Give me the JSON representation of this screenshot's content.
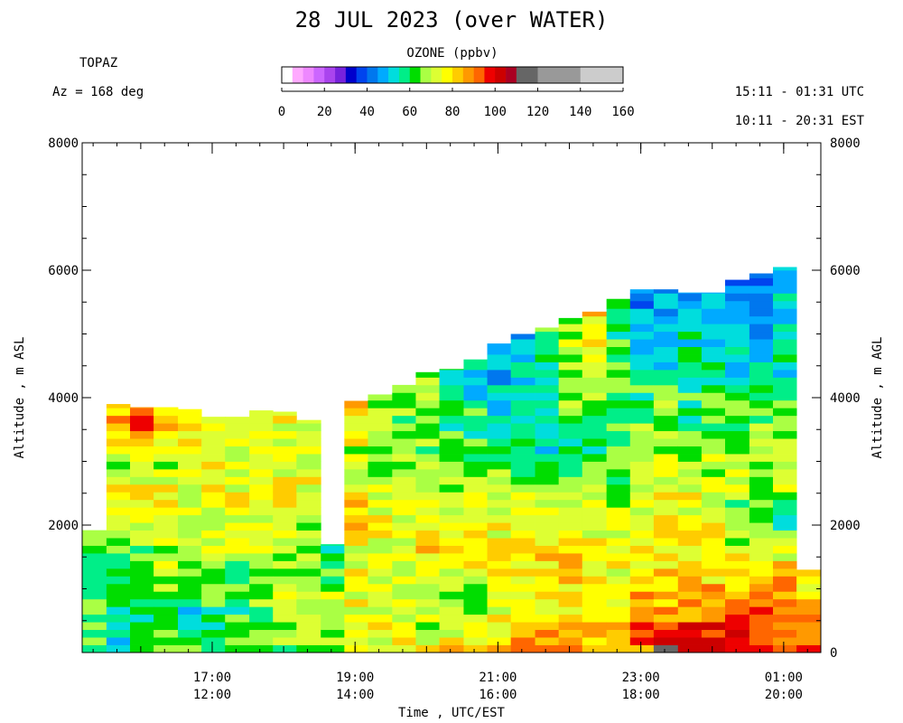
{
  "header": {
    "title": "28 JUL 2023 (over WATER)",
    "site": "TOPAZ",
    "azimuth": "Az = 168 deg",
    "utc_range": "15:11 - 01:31 UTC",
    "est_range": "10:11 - 20:31 EST"
  },
  "colorbar": {
    "title": "OZONE (ppbv)",
    "tick_labels": [
      "0",
      "20",
      "40",
      "60",
      "80",
      "100",
      "120",
      "140",
      "160"
    ],
    "tick_values": [
      0,
      20,
      40,
      60,
      80,
      100,
      120,
      140,
      160
    ],
    "bins": [
      {
        "from": 0,
        "to": 5,
        "color": "#ffffff"
      },
      {
        "from": 5,
        "to": 10,
        "color": "#ffaaff"
      },
      {
        "from": 10,
        "to": 15,
        "color": "#ee88ff"
      },
      {
        "from": 15,
        "to": 20,
        "color": "#cc66ff"
      },
      {
        "from": 20,
        "to": 25,
        "color": "#aa44ee"
      },
      {
        "from": 25,
        "to": 30,
        "color": "#7722dd"
      },
      {
        "from": 30,
        "to": 35,
        "color": "#0000cc"
      },
      {
        "from": 35,
        "to": 40,
        "color": "#0044ee"
      },
      {
        "from": 40,
        "to": 45,
        "color": "#0077ee"
      },
      {
        "from": 45,
        "to": 50,
        "color": "#00aaff"
      },
      {
        "from": 50,
        "to": 55,
        "color": "#00dddd"
      },
      {
        "from": 55,
        "to": 60,
        "color": "#00ee88"
      },
      {
        "from": 60,
        "to": 65,
        "color": "#00dd00"
      },
      {
        "from": 65,
        "to": 70,
        "color": "#aaff44"
      },
      {
        "from": 70,
        "to": 75,
        "color": "#ddff33"
      },
      {
        "from": 75,
        "to": 80,
        "color": "#ffff00"
      },
      {
        "from": 80,
        "to": 85,
        "color": "#ffcc00"
      },
      {
        "from": 85,
        "to": 90,
        "color": "#ff9900"
      },
      {
        "from": 90,
        "to": 95,
        "color": "#ff6600"
      },
      {
        "from": 95,
        "to": 100,
        "color": "#ee0000"
      },
      {
        "from": 100,
        "to": 105,
        "color": "#cc0000"
      },
      {
        "from": 105,
        "to": 110,
        "color": "#aa0022"
      },
      {
        "from": 110,
        "to": 120,
        "color": "#666666"
      },
      {
        "from": 120,
        "to": 140,
        "color": "#999999"
      },
      {
        "from": 140,
        "to": 160,
        "color": "#cccccc"
      }
    ]
  },
  "chart_data": {
    "type": "heatmap",
    "title": "28 JUL 2023 (over WATER)",
    "xlabel": "Time , UTC/EST",
    "ylabel_left": "Altitude , m ASL",
    "ylabel_right": "Altitude , m AGL",
    "x_unit": "hours UTC since 00:00 28 JUL 2023",
    "xlim": [
      15.18,
      25.52
    ],
    "ylim": [
      0,
      8000
    ],
    "x_ticks": [
      {
        "value": 17,
        "utc": "17:00",
        "est": "12:00"
      },
      {
        "value": 19,
        "utc": "19:00",
        "est": "14:00"
      },
      {
        "value": 21,
        "utc": "21:00",
        "est": "16:00"
      },
      {
        "value": 23,
        "utc": "23:00",
        "est": "18:00"
      },
      {
        "value": 25,
        "utc": "01:00",
        "est": "20:00"
      }
    ],
    "y_ticks_left": [
      {
        "value": 2000,
        "label": "2000"
      },
      {
        "value": 4000,
        "label": "4000"
      },
      {
        "value": 6000,
        "label": "6000"
      },
      {
        "value": 8000,
        "label": "8000"
      }
    ],
    "y_ticks_right": [
      {
        "value": 0,
        "label": "0"
      },
      {
        "value": 2000,
        "label": "2000"
      },
      {
        "value": 4000,
        "label": "4000"
      },
      {
        "value": 6000,
        "label": "6000"
      },
      {
        "value": 8000,
        "label": "8000"
      }
    ],
    "layer_height_m": 120,
    "profiles": [
      {
        "t_start": 15.18,
        "t_end": 15.52,
        "top_m": 1920,
        "profile": [
          [
            0,
            65
          ],
          [
            800,
            64
          ],
          [
            1200,
            63
          ],
          [
            1920,
            65
          ]
        ]
      },
      {
        "t_start": 15.52,
        "t_end": 15.85,
        "top_m": 3900,
        "profile": [
          [
            0,
            55
          ],
          [
            800,
            58
          ],
          [
            1600,
            62
          ],
          [
            2400,
            80
          ],
          [
            3000,
            70
          ],
          [
            3600,
            90
          ],
          [
            3900,
            85
          ]
        ]
      },
      {
        "t_start": 15.85,
        "t_end": 16.18,
        "top_m": 3850,
        "profile": [
          [
            0,
            58
          ],
          [
            800,
            60
          ],
          [
            1600,
            65
          ],
          [
            2400,
            76
          ],
          [
            3000,
            72
          ],
          [
            3600,
            98
          ],
          [
            3850,
            90
          ]
        ]
      },
      {
        "t_start": 16.18,
        "t_end": 16.52,
        "top_m": 3850,
        "profile": [
          [
            0,
            62
          ],
          [
            800,
            63
          ],
          [
            1600,
            70
          ],
          [
            2400,
            80
          ],
          [
            3000,
            70
          ],
          [
            3600,
            85
          ],
          [
            3850,
            80
          ]
        ]
      },
      {
        "t_start": 16.52,
        "t_end": 16.85,
        "top_m": 3820,
        "profile": [
          [
            0,
            60
          ],
          [
            800,
            55
          ],
          [
            1600,
            68
          ],
          [
            2400,
            74
          ],
          [
            3000,
            74
          ],
          [
            3600,
            80
          ],
          [
            3820,
            75
          ]
        ]
      },
      {
        "t_start": 16.85,
        "t_end": 17.18,
        "top_m": 3700,
        "profile": [
          [
            0,
            58
          ],
          [
            800,
            60
          ],
          [
            1600,
            70
          ],
          [
            2400,
            75
          ],
          [
            3000,
            74
          ],
          [
            3700,
            72
          ]
        ]
      },
      {
        "t_start": 17.18,
        "t_end": 17.52,
        "top_m": 3700,
        "profile": [
          [
            0,
            60
          ],
          [
            800,
            60
          ],
          [
            1600,
            70
          ],
          [
            2400,
            76
          ],
          [
            3000,
            74
          ],
          [
            3700,
            72
          ]
        ]
      },
      {
        "t_start": 17.52,
        "t_end": 17.85,
        "top_m": 3800,
        "profile": [
          [
            0,
            62
          ],
          [
            800,
            65
          ],
          [
            1600,
            70
          ],
          [
            2400,
            78
          ],
          [
            3000,
            72
          ],
          [
            3800,
            80
          ]
        ]
      },
      {
        "t_start": 17.85,
        "t_end": 18.18,
        "top_m": 3780,
        "profile": [
          [
            0,
            64
          ],
          [
            800,
            68
          ],
          [
            1600,
            70
          ],
          [
            2400,
            76
          ],
          [
            3000,
            72
          ],
          [
            3780,
            74
          ]
        ]
      },
      {
        "t_start": 18.18,
        "t_end": 18.52,
        "top_m": 3650,
        "profile": [
          [
            0,
            66
          ],
          [
            800,
            70
          ],
          [
            1600,
            68
          ],
          [
            2400,
            74
          ],
          [
            3000,
            72
          ],
          [
            3650,
            74
          ]
        ]
      },
      {
        "t_start": 18.52,
        "t_end": 18.85,
        "top_m": 1700,
        "profile": [
          [
            0,
            68
          ],
          [
            800,
            72
          ],
          [
            1700,
            60
          ]
        ]
      },
      {
        "t_start": 18.85,
        "t_end": 19.18,
        "top_m": 3950,
        "profile": [
          [
            0,
            72
          ],
          [
            800,
            74
          ],
          [
            1600,
            76
          ],
          [
            2200,
            84
          ],
          [
            3000,
            70
          ],
          [
            3950,
            80
          ]
        ]
      },
      {
        "t_start": 19.18,
        "t_end": 19.52,
        "top_m": 4050,
        "profile": [
          [
            0,
            74
          ],
          [
            800,
            72
          ],
          [
            1600,
            74
          ],
          [
            2400,
            72
          ],
          [
            3200,
            66
          ],
          [
            4050,
            70
          ]
        ]
      },
      {
        "t_start": 19.52,
        "t_end": 19.85,
        "top_m": 4200,
        "profile": [
          [
            0,
            75
          ],
          [
            800,
            70
          ],
          [
            1600,
            76
          ],
          [
            2400,
            72
          ],
          [
            3200,
            66
          ],
          [
            4200,
            68
          ]
        ]
      },
      {
        "t_start": 19.85,
        "t_end": 20.18,
        "top_m": 4400,
        "profile": [
          [
            0,
            78
          ],
          [
            800,
            66
          ],
          [
            1600,
            82
          ],
          [
            2400,
            72
          ],
          [
            3200,
            64
          ],
          [
            4400,
            66
          ]
        ]
      },
      {
        "t_start": 20.18,
        "t_end": 20.52,
        "top_m": 4450,
        "profile": [
          [
            0,
            80
          ],
          [
            800,
            62
          ],
          [
            1600,
            82
          ],
          [
            2400,
            72
          ],
          [
            3200,
            62
          ],
          [
            4000,
            56
          ],
          [
            4450,
            58
          ]
        ]
      },
      {
        "t_start": 20.52,
        "t_end": 20.85,
        "top_m": 4600,
        "profile": [
          [
            0,
            84
          ],
          [
            800,
            64
          ],
          [
            1600,
            80
          ],
          [
            2400,
            72
          ],
          [
            3200,
            62
          ],
          [
            4000,
            56
          ],
          [
            4600,
            52
          ]
        ]
      },
      {
        "t_start": 20.85,
        "t_end": 21.18,
        "top_m": 4850,
        "profile": [
          [
            0,
            86
          ],
          [
            800,
            72
          ],
          [
            1600,
            80
          ],
          [
            2400,
            70
          ],
          [
            3200,
            62
          ],
          [
            4000,
            50
          ],
          [
            4850,
            45
          ]
        ]
      },
      {
        "t_start": 21.18,
        "t_end": 21.52,
        "top_m": 5000,
        "profile": [
          [
            0,
            88
          ],
          [
            800,
            76
          ],
          [
            1600,
            82
          ],
          [
            2400,
            72
          ],
          [
            3200,
            60
          ],
          [
            4000,
            54
          ],
          [
            5000,
            48
          ]
        ]
      },
      {
        "t_start": 21.52,
        "t_end": 21.85,
        "top_m": 5100,
        "profile": [
          [
            0,
            88
          ],
          [
            800,
            76
          ],
          [
            1600,
            80
          ],
          [
            2400,
            72
          ],
          [
            3200,
            56
          ],
          [
            4000,
            60
          ],
          [
            5100,
            62
          ]
        ]
      },
      {
        "t_start": 21.85,
        "t_end": 22.18,
        "top_m": 5250,
        "profile": [
          [
            0,
            88
          ],
          [
            800,
            78
          ],
          [
            1600,
            80
          ],
          [
            2400,
            70
          ],
          [
            3200,
            58
          ],
          [
            4000,
            66
          ],
          [
            5250,
            70
          ]
        ]
      },
      {
        "t_start": 22.18,
        "t_end": 22.52,
        "top_m": 5350,
        "profile": [
          [
            0,
            86
          ],
          [
            800,
            80
          ],
          [
            1600,
            78
          ],
          [
            2400,
            68
          ],
          [
            3200,
            60
          ],
          [
            4200,
            70
          ],
          [
            5350,
            80
          ]
        ]
      },
      {
        "t_start": 22.52,
        "t_end": 22.85,
        "top_m": 5550,
        "profile": [
          [
            0,
            88
          ],
          [
            800,
            80
          ],
          [
            1600,
            76
          ],
          [
            2400,
            66
          ],
          [
            3200,
            62
          ],
          [
            4200,
            64
          ],
          [
            5550,
            56
          ]
        ]
      },
      {
        "t_start": 22.85,
        "t_end": 23.18,
        "top_m": 5700,
        "profile": [
          [
            0,
            92
          ],
          [
            600,
            90
          ],
          [
            1200,
            80
          ],
          [
            2000,
            76
          ],
          [
            2800,
            66
          ],
          [
            3600,
            64
          ],
          [
            4600,
            56
          ],
          [
            5700,
            42
          ]
        ]
      },
      {
        "t_start": 23.18,
        "t_end": 23.52,
        "top_m": 5700,
        "profile": [
          [
            0,
            112
          ],
          [
            600,
            88
          ],
          [
            1200,
            80
          ],
          [
            2000,
            78
          ],
          [
            2800,
            70
          ],
          [
            3600,
            66
          ],
          [
            4600,
            54
          ],
          [
            5700,
            44
          ]
        ]
      },
      {
        "t_start": 23.52,
        "t_end": 23.85,
        "top_m": 5650,
        "profile": [
          [
            0,
            106
          ],
          [
            600,
            90
          ],
          [
            1200,
            80
          ],
          [
            2000,
            76
          ],
          [
            2800,
            70
          ],
          [
            3600,
            62
          ],
          [
            4600,
            58
          ],
          [
            5650,
            48
          ]
        ]
      },
      {
        "t_start": 23.85,
        "t_end": 24.18,
        "top_m": 5650,
        "profile": [
          [
            0,
            104
          ],
          [
            600,
            90
          ],
          [
            1200,
            80
          ],
          [
            2000,
            76
          ],
          [
            2800,
            72
          ],
          [
            3600,
            64
          ],
          [
            4600,
            56
          ],
          [
            5650,
            46
          ]
        ]
      },
      {
        "t_start": 24.18,
        "t_end": 24.52,
        "top_m": 5850,
        "profile": [
          [
            0,
            102
          ],
          [
            600,
            92
          ],
          [
            1200,
            82
          ],
          [
            2000,
            62
          ],
          [
            2800,
            72
          ],
          [
            3600,
            62
          ],
          [
            4600,
            54
          ],
          [
            5850,
            40
          ]
        ]
      },
      {
        "t_start": 24.52,
        "t_end": 24.85,
        "top_m": 5950,
        "profile": [
          [
            0,
            100
          ],
          [
            600,
            92
          ],
          [
            1200,
            84
          ],
          [
            2000,
            60
          ],
          [
            2800,
            70
          ],
          [
            3600,
            62
          ],
          [
            4600,
            54
          ],
          [
            5950,
            40
          ]
        ]
      },
      {
        "t_start": 24.85,
        "t_end": 25.18,
        "top_m": 6050,
        "profile": [
          [
            0,
            96
          ],
          [
            600,
            90
          ],
          [
            1200,
            84
          ],
          [
            2000,
            58
          ],
          [
            2800,
            74
          ],
          [
            3600,
            64
          ],
          [
            4600,
            56
          ],
          [
            6050,
            50
          ]
        ]
      },
      {
        "t_start": 25.18,
        "t_end": 25.52,
        "top_m": 1300,
        "profile": [
          [
            0,
            92
          ],
          [
            600,
            88
          ],
          [
            1300,
            78
          ]
        ]
      }
    ]
  }
}
